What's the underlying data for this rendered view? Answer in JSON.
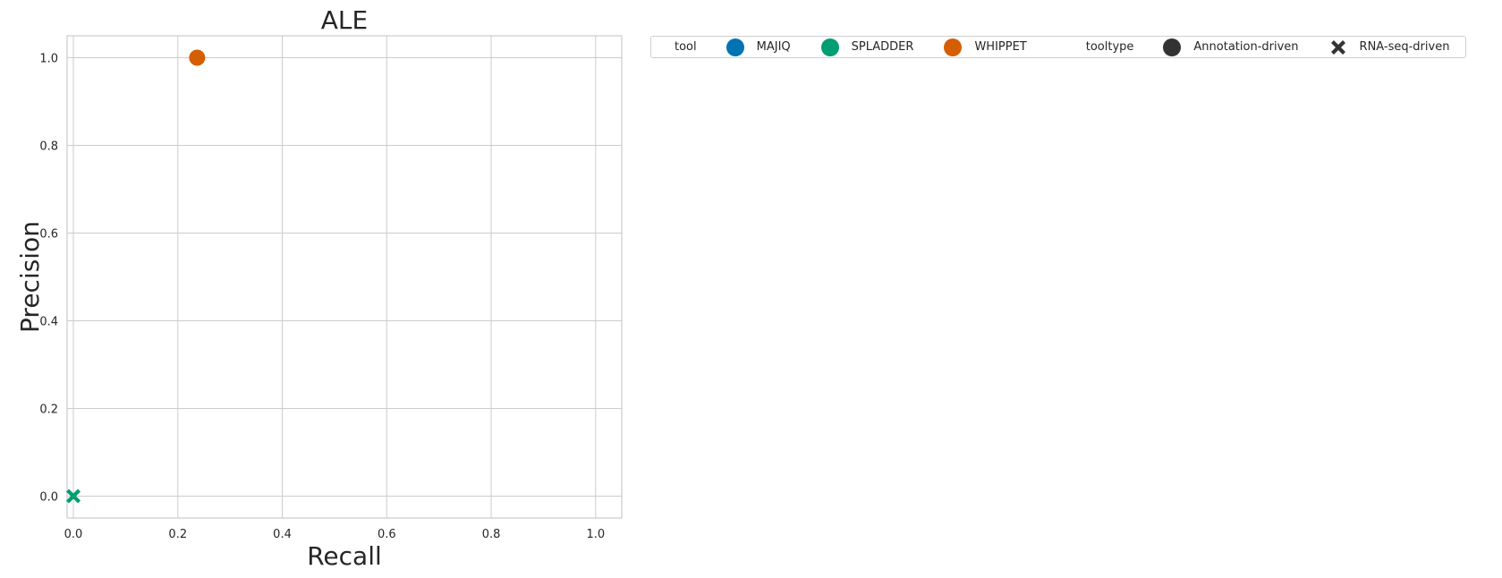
{
  "chart_data": {
    "type": "scatter",
    "title": "ALE",
    "xlabel": "Recall",
    "ylabel": "Precision",
    "xlim": [
      -0.012,
      1.05
    ],
    "ylim": [
      -0.05,
      1.05
    ],
    "xticks": [
      0.0,
      0.2,
      0.4,
      0.6,
      0.8,
      1.0
    ],
    "yticks": [
      0.0,
      0.2,
      0.4,
      0.6,
      0.8,
      1.0
    ],
    "xtick_labels": [
      "0.0",
      "0.2",
      "0.4",
      "0.6",
      "0.8",
      "1.0"
    ],
    "ytick_labels": [
      "0.0",
      "0.2",
      "0.4",
      "0.6",
      "0.8",
      "1.0"
    ],
    "grid": true,
    "legend_position": "outside-right-top",
    "points": [
      {
        "tool": "WHIPPET",
        "tooltype": "Annotation-driven",
        "x": 0.237,
        "y": 1.0
      },
      {
        "tool": "SPLADDER",
        "tooltype": "RNA-seq-driven",
        "x": 0.0,
        "y": 0.0
      }
    ],
    "colors": {
      "MAJIQ": "#0173b2",
      "SPLADDER": "#029e73",
      "WHIPPET": "#d55e00",
      "neutral": "#333333"
    }
  },
  "legend": {
    "tool_heading": "tool",
    "tools": [
      {
        "label": "MAJIQ",
        "color": "#0173b2"
      },
      {
        "label": "SPLADDER",
        "color": "#029e73"
      },
      {
        "label": "WHIPPET",
        "color": "#d55e00"
      }
    ],
    "tooltype_heading": "tooltype",
    "tooltypes": [
      {
        "label": "Annotation-driven",
        "marker": "circle"
      },
      {
        "label": "RNA-seq-driven",
        "marker": "x"
      }
    ]
  }
}
